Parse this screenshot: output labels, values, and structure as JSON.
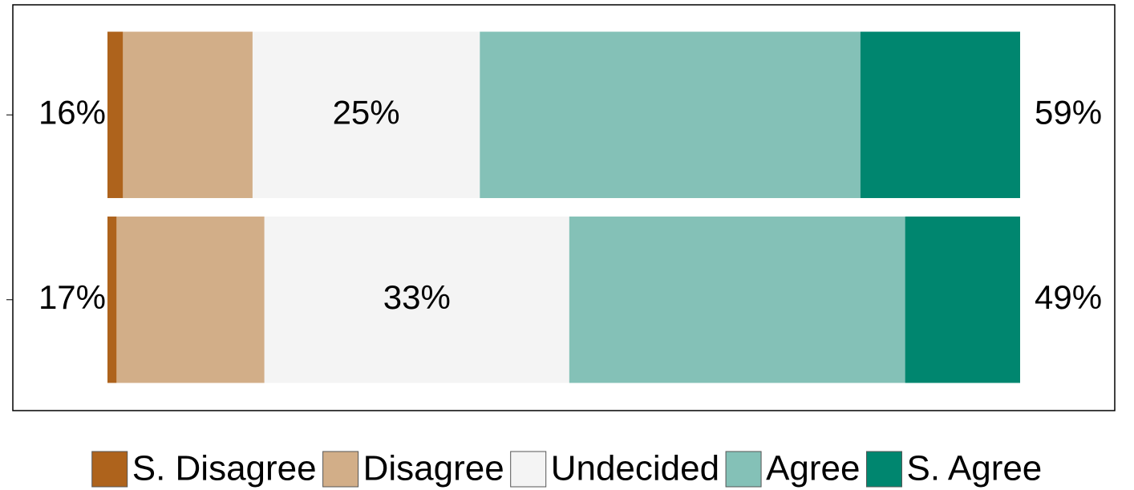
{
  "chart_data": {
    "type": "likert",
    "categories": [
      null,
      null
    ],
    "series": [
      {
        "name": "S. Disagree",
        "color": "#ae631c",
        "values": [
          1.7,
          1.0
        ]
      },
      {
        "name": "Disagree",
        "color": "#d2ae88",
        "values": [
          14.2,
          16.2
        ]
      },
      {
        "name": "Undecided",
        "color": "#f4f4f4",
        "values": [
          24.9,
          33.4
        ]
      },
      {
        "name": "Agree",
        "color": "#84c1b7",
        "values": [
          41.7,
          36.8
        ]
      },
      {
        "name": "S. Agree",
        "color": "#00866f",
        "values": [
          17.5,
          12.6
        ]
      }
    ],
    "left_labels": [
      "16%",
      "17%"
    ],
    "center_labels": [
      "25%",
      "33%"
    ],
    "right_labels": [
      "59%",
      "49%"
    ],
    "xlim": [
      0,
      100
    ]
  }
}
